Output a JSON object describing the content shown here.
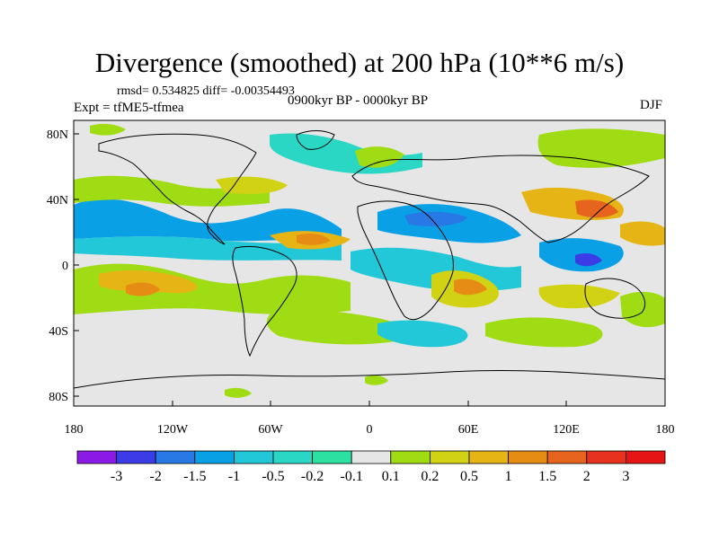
{
  "header": {
    "title": "Divergence (smoothed) at 200 hPa (10**6 m/s)",
    "stats": "rmsd= 0.534825  diff= -0.00354493",
    "experiment": "Expt = tfME5-tfmea",
    "period": "0900kyr BP - 0000kyr BP",
    "season": "DJF"
  },
  "map_axes": {
    "lat_labels": [
      "80N",
      "40N",
      "0",
      "40S",
      "80S"
    ],
    "lon_labels": [
      "180",
      "120W",
      "60W",
      "0",
      "60E",
      "120E",
      "180"
    ]
  },
  "colorbar": {
    "labels": [
      "-3",
      "-2",
      "-1.5",
      "-1",
      "-0.5",
      "-0.2",
      "-0.1",
      "0.1",
      "0.2",
      "0.5",
      "1",
      "1.5",
      "2",
      "3"
    ],
    "colors": [
      "#8b1ae6",
      "#3c3ce6",
      "#2878e6",
      "#0aa0e6",
      "#23c8d8",
      "#2ad6c4",
      "#2be0a0",
      "#e6e6e6",
      "#a0dc14",
      "#d2d214",
      "#e6b414",
      "#e68c14",
      "#e6641e",
      "#e6321e",
      "#e61414"
    ]
  },
  "colors": {
    "land_outline": "#000000",
    "background": "#e6e6e6"
  }
}
